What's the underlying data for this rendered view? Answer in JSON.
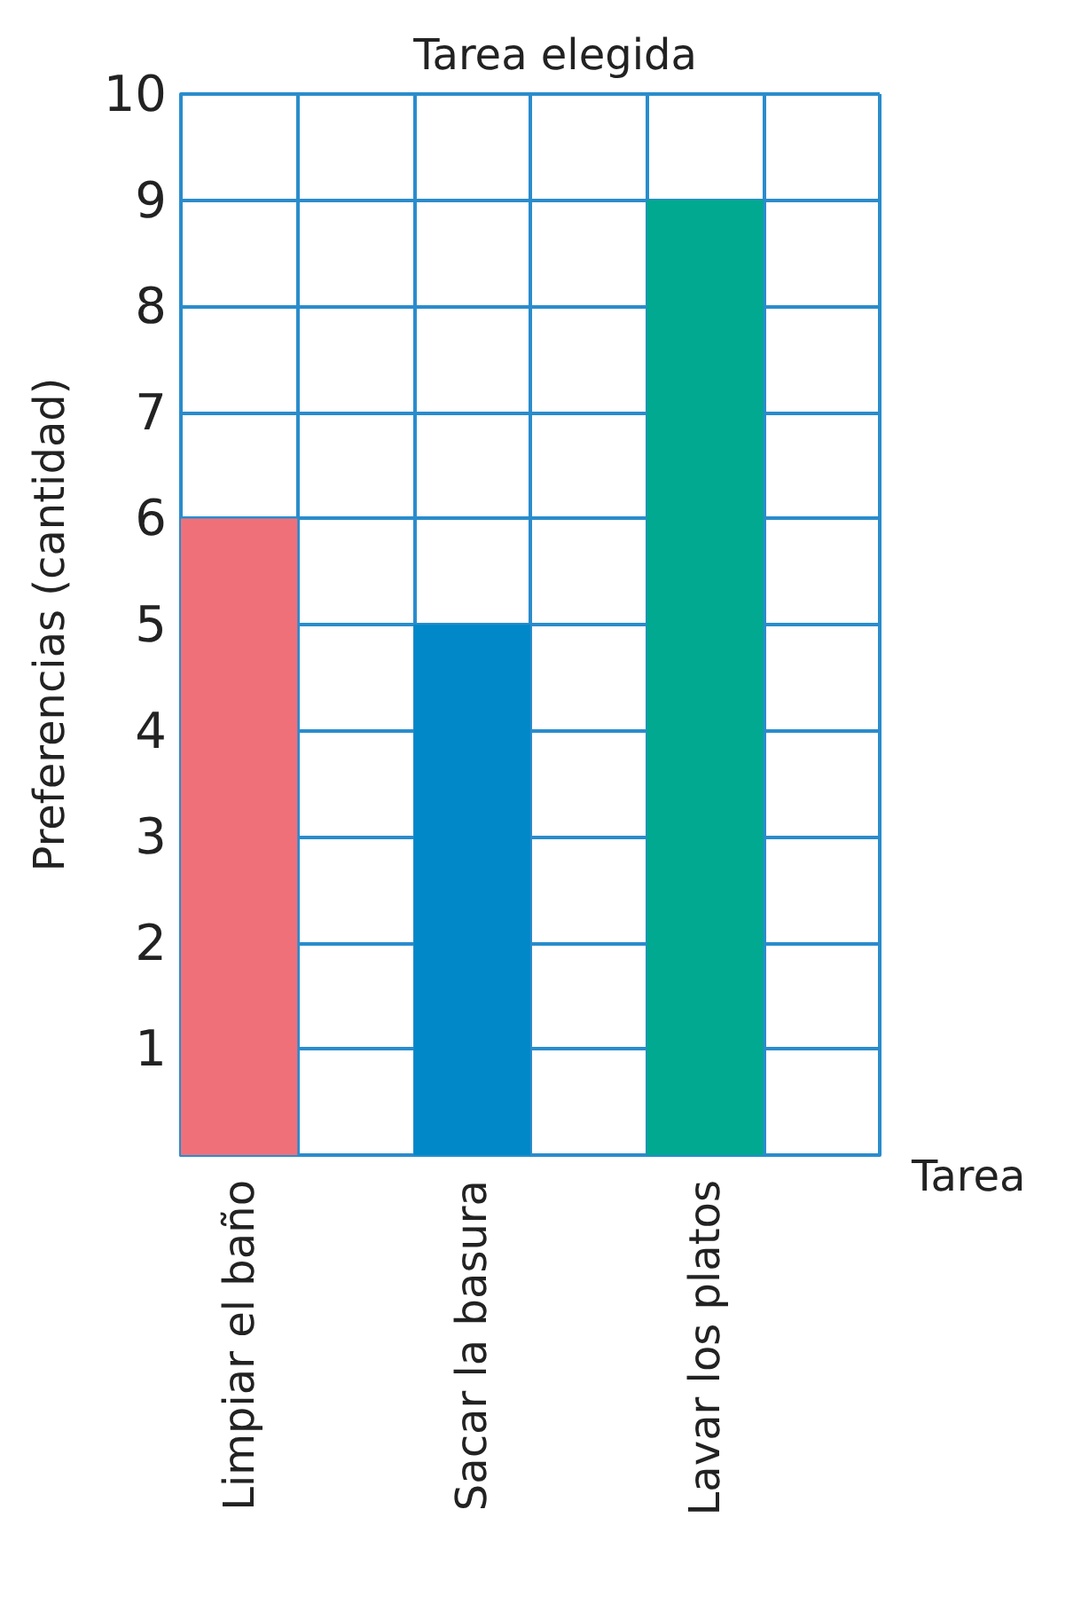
{
  "chart_data": {
    "type": "bar",
    "title": "Tarea elegida",
    "xlabel": "Tarea",
    "ylabel": "Preferencias (cantidad)",
    "categories": [
      "Limpiar el baño",
      null,
      "Sacar la basura",
      null,
      "Lavar los platos",
      null
    ],
    "values": [
      6,
      null,
      5,
      null,
      9,
      null
    ],
    "colors": [
      "#f0707a",
      null,
      "#0088c8",
      null,
      "#00a98f",
      null
    ],
    "ylim": [
      0,
      10
    ],
    "yticks": [
      {
        "value": 0,
        "label": null
      },
      1,
      2,
      3,
      4,
      5,
      6,
      7,
      8,
      9,
      10
    ],
    "grid": true
  }
}
